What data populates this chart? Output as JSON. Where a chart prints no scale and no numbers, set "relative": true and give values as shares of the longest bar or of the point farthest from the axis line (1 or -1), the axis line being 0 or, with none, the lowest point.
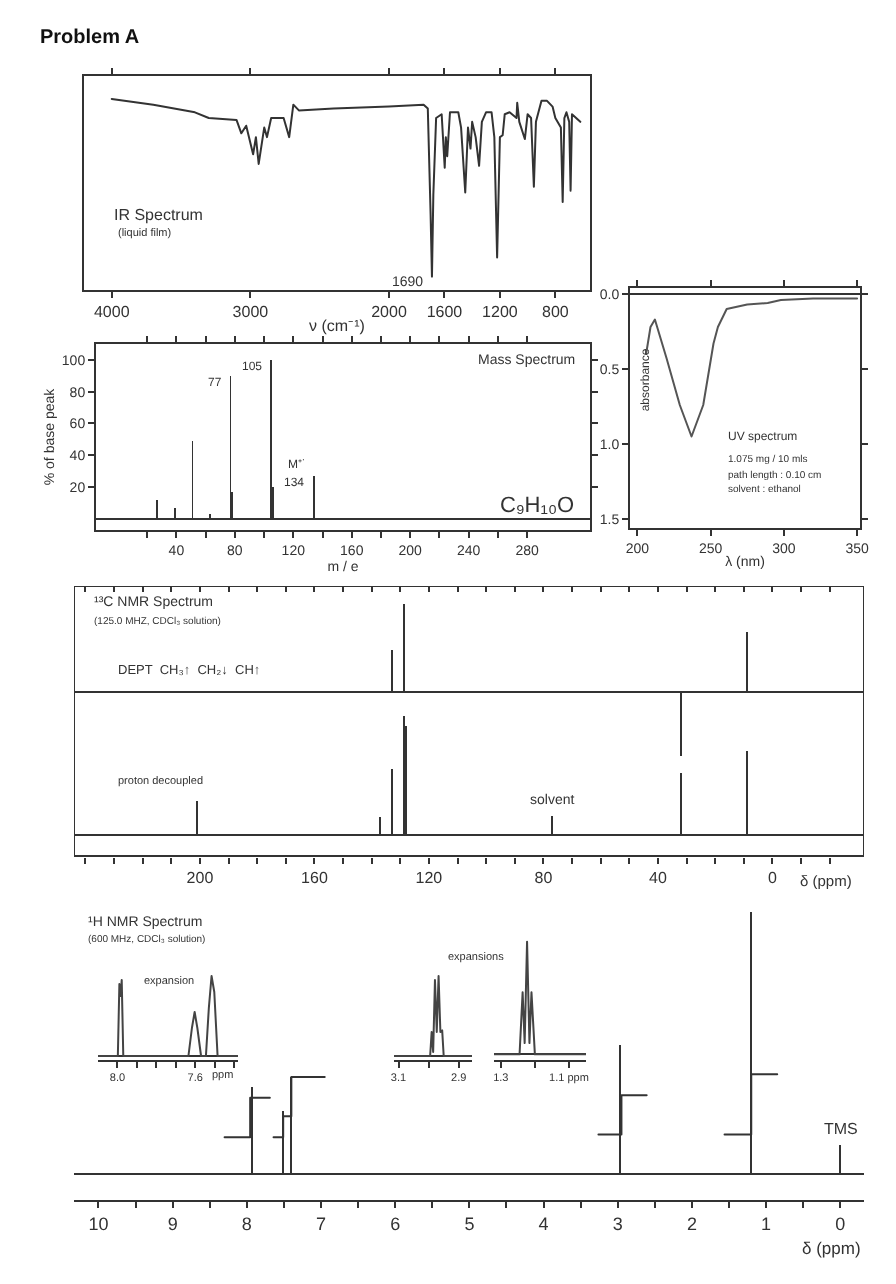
{
  "chart_data": [
    {
      "type": "line",
      "title": "Problem A",
      "relative": true,
      "xlabel": "ν (cm⁻¹)",
      "color": "#333333",
      "xlim": [
        4200,
        550
      ],
      "xticks": [
        4000,
        3000,
        2000,
        1600,
        1200,
        800
      ],
      "x": [
        4000,
        3700,
        3400,
        3300,
        3100,
        3065,
        3030,
        2980,
        2960,
        2940,
        2900,
        2880,
        2850,
        2760,
        2720,
        2690,
        2650,
        2400,
        2000,
        1750,
        1720,
        1700,
        1690,
        1680,
        1660,
        1620,
        1598,
        1590,
        1580,
        1560,
        1500,
        1480,
        1450,
        1430,
        1412,
        1400,
        1375,
        1350,
        1330,
        1300,
        1260,
        1240,
        1220,
        1200,
        1180,
        1165,
        1130,
        1080,
        1075,
        1060,
        1020,
        1000,
        975,
        955,
        940,
        900,
        860,
        820,
        800,
        760,
        747,
        735,
        720,
        700,
        690,
        680,
        620
      ],
      "values": [
        1.0,
        0.97,
        0.93,
        0.9,
        0.89,
        0.82,
        0.86,
        0.71,
        0.8,
        0.66,
        0.85,
        0.8,
        0.9,
        0.9,
        0.8,
        0.97,
        0.94,
        0.95,
        0.96,
        0.97,
        0.95,
        0.4,
        0.07,
        0.5,
        0.9,
        0.92,
        0.64,
        0.8,
        0.7,
        0.93,
        0.93,
        0.85,
        0.51,
        0.85,
        0.74,
        0.88,
        0.8,
        0.65,
        0.88,
        0.93,
        0.93,
        0.8,
        0.17,
        0.8,
        0.81,
        0.92,
        0.93,
        0.9,
        0.98,
        0.88,
        0.79,
        0.92,
        0.9,
        0.54,
        0.88,
        0.99,
        0.99,
        0.96,
        0.9,
        0.85,
        0.46,
        0.9,
        0.93,
        0.88,
        0.52,
        0.92,
        0.88
      ],
      "annotations": [
        "IR Spectrum",
        "(liquid film)",
        {
          "text": "1690",
          "x": 1690,
          "y": 0.07
        }
      ]
    },
    {
      "type": "bar",
      "xlabel": "m / e",
      "ylabel": "% of base peak",
      "color": "#333333",
      "xlim": [
        -15,
        323
      ],
      "ylim": [
        -7,
        110
      ],
      "xticks": [
        {
          "value": 20,
          "label": null
        },
        40,
        {
          "value": 60,
          "label": null
        },
        80,
        {
          "value": 100,
          "label": null
        },
        120,
        {
          "value": 140,
          "label": null
        },
        160,
        {
          "value": 180,
          "label": null
        },
        200,
        {
          "value": 220,
          "label": null
        },
        240,
        {
          "value": 260,
          "label": null
        },
        280
      ],
      "yticks": [
        20,
        40,
        60,
        80,
        100
      ],
      "x": [
        27,
        39,
        51,
        63,
        77,
        78,
        105,
        106,
        134
      ],
      "values": [
        12,
        7,
        49,
        3,
        90,
        17,
        100,
        20,
        27
      ],
      "annotations": [
        "Mass Spectrum",
        "C₉H₁₀O",
        {
          "text": "77",
          "x": 77,
          "y": 90
        },
        {
          "text": "105",
          "x": 105,
          "y": 100
        },
        {
          "text": "134",
          "x": 134,
          "y": 27
        },
        {
          "text": "M⁺˙",
          "x": 134,
          "y": 27
        }
      ]
    },
    {
      "type": "line",
      "xlabel": "λ (nm)",
      "ylabel": "absorbance",
      "color": "#555555",
      "xlim": [
        195,
        352
      ],
      "ylim": [
        1.56,
        -0.04
      ],
      "xticks": [
        200,
        250,
        300,
        350
      ],
      "yticks": [
        {
          "value": 0,
          "label": "0.0"
        },
        0.5,
        {
          "value": 1,
          "label": "1.0"
        },
        1.5
      ],
      "x": [
        206,
        209,
        212,
        220,
        229,
        237,
        245,
        252,
        255,
        261,
        275,
        289,
        298,
        320,
        350
      ],
      "values": [
        0.4,
        0.22,
        0.17,
        0.43,
        0.74,
        0.95,
        0.74,
        0.33,
        0.22,
        0.1,
        0.07,
        0.06,
        0.04,
        0.03,
        0.03
      ],
      "annotations": [
        "UV spectrum",
        "1.075 mg / 10 mls",
        "path length : 0.10 cm",
        "solvent : ethanol"
      ]
    },
    {
      "type": "bar",
      "relative": true,
      "tick_labels": false,
      "color": "#333333",
      "xlim": [
        244,
        -32
      ],
      "xticks": [
        240,
        230,
        220,
        210,
        200,
        190,
        180,
        170,
        160,
        150,
        140,
        130,
        120,
        110,
        100,
        90,
        80,
        70,
        60,
        50,
        40,
        30,
        20,
        10,
        0,
        -10,
        -20
      ],
      "x": [
        133,
        128.6,
        32,
        9
      ],
      "values": [
        0.47,
        1,
        -0.73,
        0.68
      ],
      "annotations": [
        "¹³C NMR Spectrum",
        "(125.0 MHZ, CDCl₃ solution)",
        "DEPT  CH₃↑  CH₂↓  CH↑"
      ]
    },
    {
      "type": "bar",
      "relative": true,
      "xlabel": "δ (ppm)",
      "color": "#333333",
      "xlim": [
        244,
        -32
      ],
      "xticks": [
        {
          "value": 240,
          "label": null
        },
        {
          "value": 230,
          "label": null
        },
        {
          "value": 220,
          "label": null
        },
        {
          "value": 210,
          "label": null
        },
        200,
        {
          "value": 190,
          "label": null
        },
        {
          "value": 180,
          "label": null
        },
        {
          "value": 170,
          "label": null
        },
        160,
        {
          "value": 150,
          "label": null
        },
        {
          "value": 140,
          "label": null
        },
        {
          "value": 130,
          "label": null
        },
        120,
        {
          "value": 110,
          "label": null
        },
        {
          "value": 100,
          "label": null
        },
        {
          "value": 90,
          "label": null
        },
        80,
        {
          "value": 70,
          "label": null
        },
        {
          "value": 60,
          "label": null
        },
        {
          "value": 50,
          "label": null
        },
        40,
        {
          "value": 30,
          "label": null
        },
        {
          "value": 20,
          "label": null
        },
        {
          "value": 10,
          "label": null
        },
        0,
        {
          "value": -10,
          "label": null
        },
        {
          "value": -20,
          "label": null
        }
      ],
      "x": [
        201,
        137,
        133,
        128.6,
        128,
        77,
        32,
        9
      ],
      "values": [
        0.28,
        0.15,
        0.55,
        1,
        0.91,
        0.16,
        0.52,
        0.7
      ],
      "annotations": [
        "proton decoupled",
        {
          "text": "solvent",
          "x": 77,
          "y": 0.16
        }
      ]
    },
    {
      "type": "bar",
      "relative": true,
      "xlabel": "δ (ppm)",
      "xlim": [
        10.33,
        -0.32
      ],
      "xticks": [
        10,
        {
          "value": 9.5,
          "label": null
        },
        9,
        {
          "value": 8.5,
          "label": null
        },
        8,
        {
          "value": 7.5,
          "label": null
        },
        7,
        {
          "value": 6.5,
          "label": null
        },
        6,
        {
          "value": 5.5,
          "label": null
        },
        5,
        {
          "value": 4.5,
          "label": null
        },
        4,
        {
          "value": 3.5,
          "label": null
        },
        3,
        {
          "value": 2.5,
          "label": null
        },
        2,
        {
          "value": 1.5,
          "label": null
        },
        1,
        {
          "value": 0.5,
          "label": null
        },
        0
      ],
      "x": [
        7.93,
        7.51,
        7.4,
        2.97,
        1.2,
        0
      ],
      "series": [
        {
          "color": "#333333",
          "values": [
            0.33,
            0.24,
            0.37,
            0.49,
            1,
            0.11
          ]
        },
        {
          "type": "line",
          "color": "#333333",
          "x": [
            8.3,
            7.955,
            7.955,
            7.69
          ],
          "values": [
            0.14,
            0.14,
            0.29,
            0.29
          ]
        },
        {
          "type": "line",
          "color": "#333333",
          "x": [
            7.64,
            7.51,
            7.51,
            7.4,
            7.4,
            6.95
          ],
          "values": [
            0.14,
            0.14,
            0.22,
            0.22,
            0.37,
            0.37
          ]
        },
        {
          "type": "line",
          "color": "#333333",
          "x": [
            3.26,
            2.95,
            2.95,
            2.61
          ],
          "values": [
            0.15,
            0.15,
            0.3,
            0.3
          ]
        },
        {
          "type": "line",
          "color": "#333333",
          "x": [
            1.56,
            1.2,
            1.2,
            0.85
          ],
          "values": [
            0.15,
            0.15,
            0.38,
            0.38
          ]
        }
      ],
      "annotations": [
        "¹H NMR Spectrum",
        "(600 MHz, CDCl₃ solution)",
        {
          "text": "TMS",
          "x": 0,
          "y": 0.11
        }
      ]
    },
    {
      "type": "line",
      "relative": true,
      "xlabel": "ppm",
      "color": "#444444",
      "xlim": [
        8.1,
        7.38
      ],
      "xticks": [
        {
          "value": 8,
          "label": "8.0"
        },
        {
          "value": 7.9,
          "label": null
        },
        {
          "value": 7.8,
          "label": null
        },
        {
          "value": 7.7,
          "label": null
        },
        7.6,
        {
          "value": 7.5,
          "label": null
        },
        {
          "value": 7.4,
          "label": null
        }
      ],
      "x": [
        8.1,
        7.998,
        7.99,
        7.984,
        7.978,
        7.97,
        7.635,
        7.617,
        7.603,
        7.589,
        7.57,
        7.545,
        7.53,
        7.516,
        7.502,
        7.485,
        7.38
      ],
      "values": [
        0,
        0,
        0.9,
        0.75,
        0.95,
        0,
        0,
        0.35,
        0.55,
        0.35,
        0,
        0,
        0.6,
        1,
        0.8,
        0,
        0
      ],
      "annotations": [
        "expansion"
      ]
    },
    {
      "type": "line",
      "relative": true,
      "color": "#444444",
      "xlim": [
        3.115,
        2.856
      ],
      "xticks": [
        3.1,
        {
          "value": 3.0,
          "label": null
        },
        2.9
      ],
      "x": [
        3.115,
        2.995,
        2.99,
        2.985,
        2.979,
        2.973,
        2.967,
        2.961,
        2.955,
        2.95,
        2.856
      ],
      "values": [
        0,
        0,
        0.3,
        0.05,
        0.95,
        0.3,
        1,
        0.3,
        0.32,
        0,
        0
      ],
      "annotations": [
        "expansions"
      ]
    },
    {
      "type": "line",
      "relative": true,
      "color": "#444444",
      "xlim": [
        1.32,
        1.05
      ],
      "xticks": [
        1.3,
        {
          "value": 1.2,
          "label": null
        },
        {
          "value": 1.1,
          "label": "1.1 ppm"
        }
      ],
      "x": [
        1.32,
        1.245,
        1.236,
        1.23,
        1.223,
        1.216,
        1.21,
        1.2,
        1.05
      ],
      "values": [
        0,
        0,
        0.55,
        0.1,
        1,
        0.1,
        0.55,
        0,
        0
      ]
    }
  ]
}
